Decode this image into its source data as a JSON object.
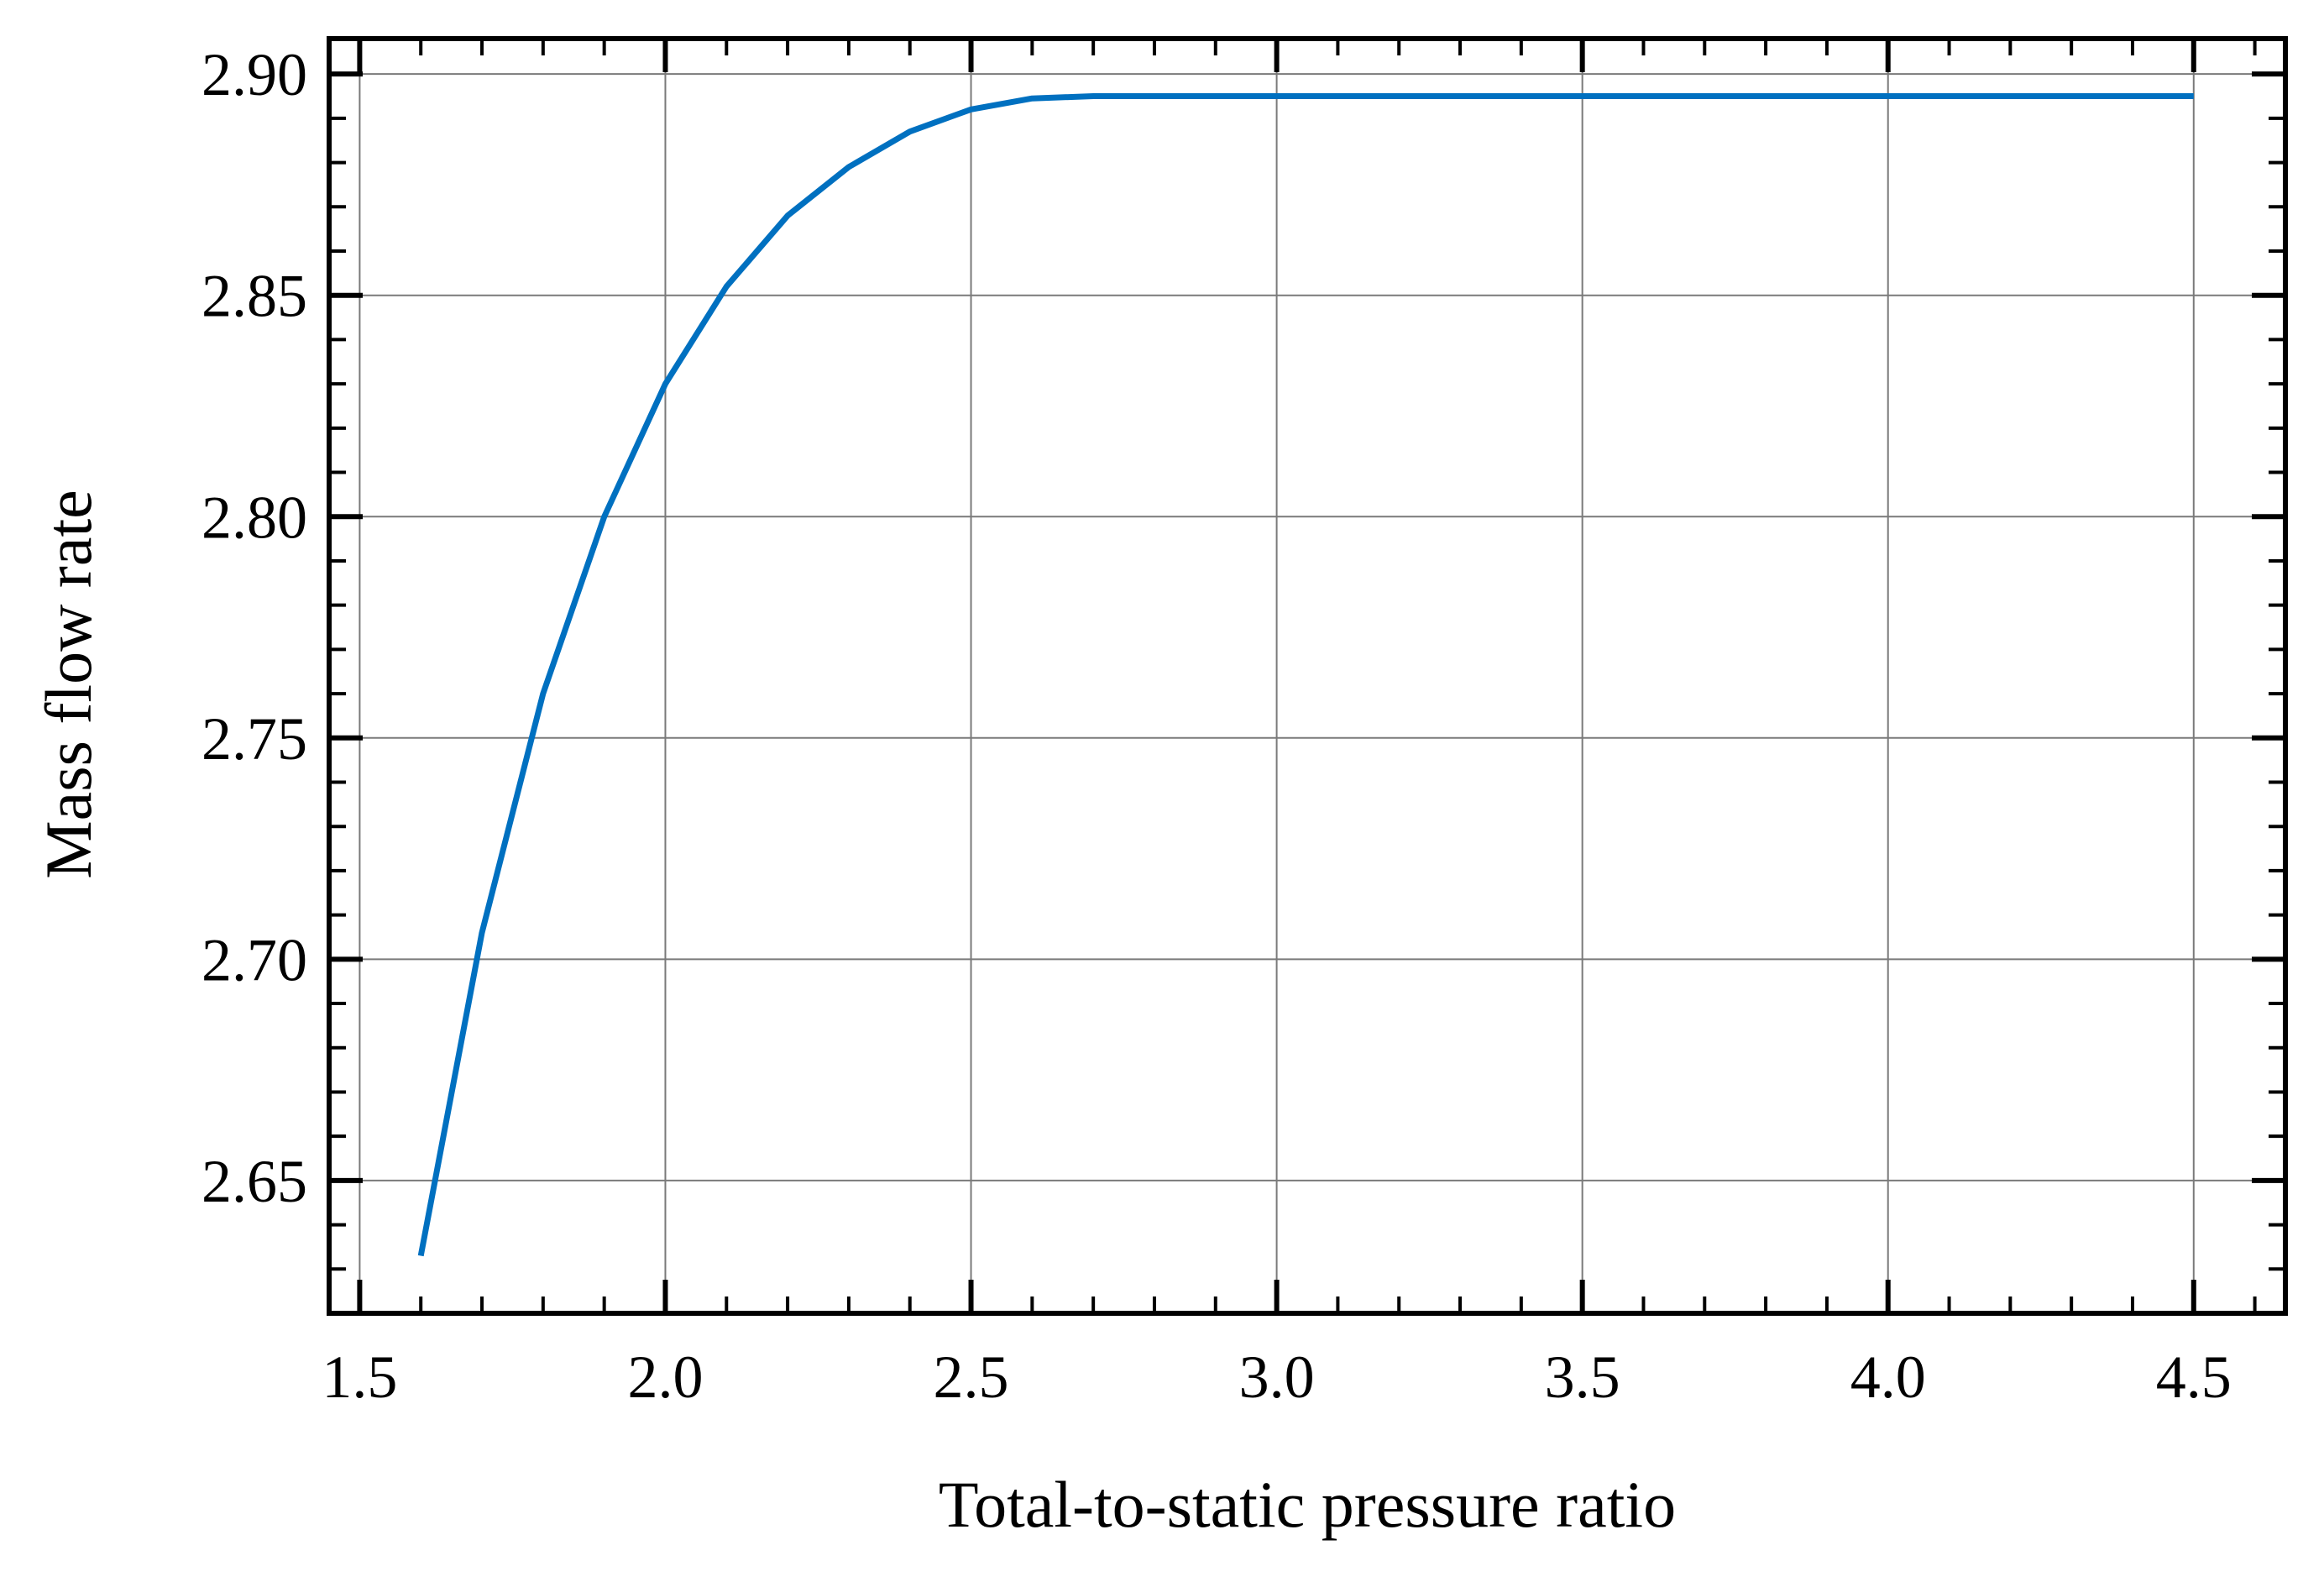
{
  "chart_data": {
    "type": "line",
    "title": "",
    "xlabel": "Total-to-static pressure ratio",
    "ylabel": "Mass flow rate",
    "xlim": [
      1.45,
      4.65
    ],
    "ylim": [
      2.62,
      2.908
    ],
    "grid": true,
    "x_ticks": [
      "1.5",
      "2.0",
      "2.5",
      "3.0",
      "3.5",
      "4.0",
      "4.5"
    ],
    "y_ticks": [
      "2.65",
      "2.70",
      "2.75",
      "2.80",
      "2.85",
      "2.90"
    ],
    "series_color": "#0070c0",
    "series": [
      {
        "x": [
          1.6,
          1.7,
          1.8,
          1.9,
          2.0,
          2.1,
          2.2,
          2.3,
          2.4,
          2.5,
          2.6,
          2.7,
          2.8,
          2.9,
          3.0,
          3.1,
          3.2,
          3.3,
          3.4,
          3.5,
          3.6,
          3.7,
          3.8,
          3.9,
          4.0,
          4.1,
          4.2,
          4.3,
          4.4,
          4.5
        ],
        "y": [
          2.633,
          2.706,
          2.76,
          2.8,
          2.83,
          2.852,
          2.868,
          2.879,
          2.887,
          2.892,
          2.8945,
          2.895,
          2.895,
          2.895,
          2.895,
          2.895,
          2.895,
          2.895,
          2.895,
          2.895,
          2.895,
          2.895,
          2.895,
          2.895,
          2.895,
          2.895,
          2.895,
          2.895,
          2.895,
          2.895
        ]
      }
    ]
  }
}
